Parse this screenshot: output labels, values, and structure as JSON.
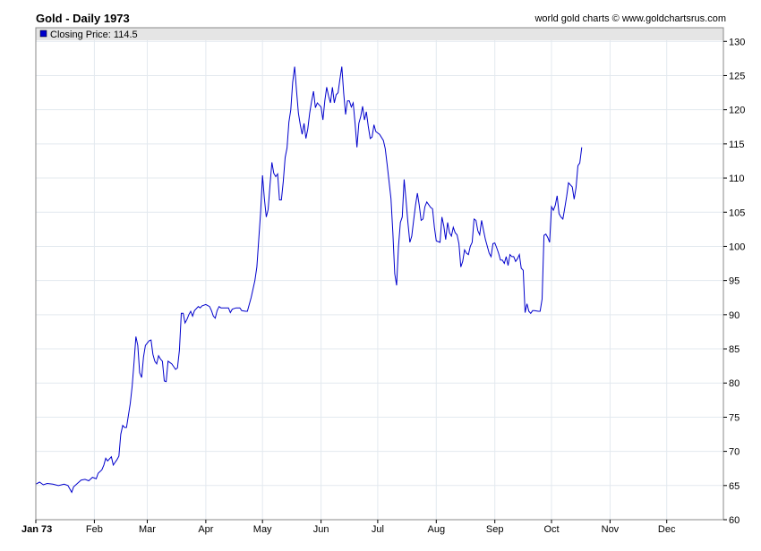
{
  "header": {
    "title": "Gold - Daily 1973",
    "credit": "world gold charts © www.goldchartsrus.com"
  },
  "legend": {
    "label": "Closing Price: 114.5"
  },
  "colors": {
    "series": "#0000cc",
    "grid": "#e3e9ef",
    "legend_bg": "#e5e5e5"
  },
  "chart_data": {
    "type": "line",
    "title": "Gold - Daily 1973",
    "xlabel": "",
    "ylabel": "",
    "ylim": [
      60,
      132
    ],
    "y_ticks": [
      60,
      65,
      70,
      75,
      80,
      85,
      90,
      95,
      100,
      105,
      110,
      115,
      120,
      125,
      130
    ],
    "y_axis_side": "right",
    "grid": true,
    "legend_position": "top-left",
    "x_ticks": [
      {
        "label": "Jan 73",
        "day": 0,
        "bold": true
      },
      {
        "label": "Feb",
        "day": 31
      },
      {
        "label": "Mar",
        "day": 59
      },
      {
        "label": "Apr",
        "day": 90
      },
      {
        "label": "May",
        "day": 120
      },
      {
        "label": "Jun",
        "day": 151
      },
      {
        "label": "Jul",
        "day": 181
      },
      {
        "label": "Aug",
        "day": 212
      },
      {
        "label": "Sep",
        "day": 243
      },
      {
        "label": "Oct",
        "day": 273
      },
      {
        "label": "Nov",
        "day": 304
      },
      {
        "label": "Dec",
        "day": 334
      }
    ],
    "xlim": [
      0,
      364
    ],
    "series": [
      {
        "name": "Closing Price",
        "points": [
          [
            0,
            65.2
          ],
          [
            2,
            65.5
          ],
          [
            4,
            65.1
          ],
          [
            6,
            65.3
          ],
          [
            9,
            65.2
          ],
          [
            12,
            65.0
          ],
          [
            15,
            65.2
          ],
          [
            17,
            65.0
          ],
          [
            18,
            64.5
          ],
          [
            19,
            64.0
          ],
          [
            20,
            64.8
          ],
          [
            22,
            65.3
          ],
          [
            24,
            65.8
          ],
          [
            26,
            65.9
          ],
          [
            28,
            65.7
          ],
          [
            30,
            66.2
          ],
          [
            32,
            66.0
          ],
          [
            33,
            66.8
          ],
          [
            35,
            67.3
          ],
          [
            36,
            68.0
          ],
          [
            37,
            69.0
          ],
          [
            38,
            68.6
          ],
          [
            40,
            69.2
          ],
          [
            41,
            68.0
          ],
          [
            43,
            68.8
          ],
          [
            44,
            69.3
          ],
          [
            45,
            72.5
          ],
          [
            46,
            73.8
          ],
          [
            47,
            73.5
          ],
          [
            48,
            73.5
          ],
          [
            50,
            77.0
          ],
          [
            51,
            79.5
          ],
          [
            52,
            83.0
          ],
          [
            53,
            86.8
          ],
          [
            54,
            85.5
          ],
          [
            55,
            81.5
          ],
          [
            56,
            80.8
          ],
          [
            57,
            83.8
          ],
          [
            58,
            85.5
          ],
          [
            60,
            86.2
          ],
          [
            61,
            86.3
          ],
          [
            62,
            84.2
          ],
          [
            63,
            83.2
          ],
          [
            64,
            82.8
          ],
          [
            65,
            84.0
          ],
          [
            66,
            83.5
          ],
          [
            67,
            83.2
          ],
          [
            68,
            80.3
          ],
          [
            69,
            80.2
          ],
          [
            70,
            83.2
          ],
          [
            71,
            83.0
          ],
          [
            72,
            82.8
          ],
          [
            73,
            82.4
          ],
          [
            74,
            82.0
          ],
          [
            75,
            82.2
          ],
          [
            76,
            84.8
          ],
          [
            77,
            90.2
          ],
          [
            78,
            90.2
          ],
          [
            79,
            88.8
          ],
          [
            80,
            89.3
          ],
          [
            81,
            90.0
          ],
          [
            82,
            90.5
          ],
          [
            83,
            89.8
          ],
          [
            84,
            90.6
          ],
          [
            86,
            91.2
          ],
          [
            87,
            91.0
          ],
          [
            88,
            91.3
          ],
          [
            90,
            91.5
          ],
          [
            92,
            91.2
          ],
          [
            93,
            90.6
          ],
          [
            94,
            89.8
          ],
          [
            95,
            89.5
          ],
          [
            96,
            90.6
          ],
          [
            97,
            91.2
          ],
          [
            98,
            91.0
          ],
          [
            100,
            91.0
          ],
          [
            102,
            91.0
          ],
          [
            103,
            90.3
          ],
          [
            104,
            90.8
          ],
          [
            106,
            91.0
          ],
          [
            108,
            91.0
          ],
          [
            109,
            90.6
          ],
          [
            111,
            90.5
          ],
          [
            112,
            90.5
          ],
          [
            113,
            91.5
          ],
          [
            114,
            92.5
          ],
          [
            116,
            95.0
          ],
          [
            117,
            97.0
          ],
          [
            118,
            101.0
          ],
          [
            119,
            105.0
          ],
          [
            120,
            110.4
          ],
          [
            121,
            107.0
          ],
          [
            122,
            104.3
          ],
          [
            123,
            105.4
          ],
          [
            124,
            109.0
          ],
          [
            125,
            112.3
          ],
          [
            126,
            110.7
          ],
          [
            127,
            110.2
          ],
          [
            128,
            110.6
          ],
          [
            129,
            106.8
          ],
          [
            130,
            106.8
          ],
          [
            131,
            109.5
          ],
          [
            132,
            113.0
          ],
          [
            133,
            114.4
          ],
          [
            134,
            118.2
          ],
          [
            135,
            120.0
          ],
          [
            136,
            124.0
          ],
          [
            137,
            126.3
          ],
          [
            138,
            122.8
          ],
          [
            139,
            119.5
          ],
          [
            140,
            117.8
          ],
          [
            141,
            116.4
          ],
          [
            142,
            118.0
          ],
          [
            143,
            115.8
          ],
          [
            144,
            117.2
          ],
          [
            145,
            119.5
          ],
          [
            146,
            121.2
          ],
          [
            147,
            122.7
          ],
          [
            148,
            120.3
          ],
          [
            149,
            121.0
          ],
          [
            151,
            120.4
          ],
          [
            152,
            118.5
          ],
          [
            153,
            121.3
          ],
          [
            154,
            123.3
          ],
          [
            155,
            122.0
          ],
          [
            156,
            121.0
          ],
          [
            157,
            123.3
          ],
          [
            158,
            121.0
          ],
          [
            159,
            122.2
          ],
          [
            160,
            122.5
          ],
          [
            161,
            124.5
          ],
          [
            162,
            126.3
          ],
          [
            163,
            122.4
          ],
          [
            164,
            119.3
          ],
          [
            165,
            121.3
          ],
          [
            166,
            121.3
          ],
          [
            167,
            120.4
          ],
          [
            168,
            121.0
          ],
          [
            169,
            118.0
          ],
          [
            170,
            114.5
          ],
          [
            171,
            118.0
          ],
          [
            172,
            119.0
          ],
          [
            173,
            120.5
          ],
          [
            174,
            118.5
          ],
          [
            175,
            119.7
          ],
          [
            176,
            117.6
          ],
          [
            177,
            115.8
          ],
          [
            178,
            116.0
          ],
          [
            179,
            117.8
          ],
          [
            180,
            116.8
          ],
          [
            182,
            116.4
          ],
          [
            184,
            115.5
          ],
          [
            185,
            114.3
          ],
          [
            186,
            112.0
          ],
          [
            188,
            107.0
          ],
          [
            189,
            102.0
          ],
          [
            190,
            96.0
          ],
          [
            191,
            94.3
          ],
          [
            192,
            100.0
          ],
          [
            193,
            103.5
          ],
          [
            194,
            104.3
          ],
          [
            195,
            109.8
          ],
          [
            196,
            106.8
          ],
          [
            197,
            103.5
          ],
          [
            198,
            100.6
          ],
          [
            199,
            101.5
          ],
          [
            200,
            103.8
          ],
          [
            201,
            106.0
          ],
          [
            202,
            107.8
          ],
          [
            203,
            106.0
          ],
          [
            204,
            103.8
          ],
          [
            205,
            104.0
          ],
          [
            206,
            105.8
          ],
          [
            207,
            106.5
          ],
          [
            209,
            105.7
          ],
          [
            210,
            105.5
          ],
          [
            211,
            102.8
          ],
          [
            212,
            100.8
          ],
          [
            213,
            100.7
          ],
          [
            214,
            100.6
          ],
          [
            215,
            104.3
          ],
          [
            216,
            103.0
          ],
          [
            217,
            101.0
          ],
          [
            218,
            103.5
          ],
          [
            219,
            102.0
          ],
          [
            220,
            101.5
          ],
          [
            221,
            102.8
          ],
          [
            222,
            102.0
          ],
          [
            223,
            101.7
          ],
          [
            224,
            100.4
          ],
          [
            225,
            97.0
          ],
          [
            226,
            97.8
          ],
          [
            227,
            99.5
          ],
          [
            228,
            99.0
          ],
          [
            229,
            98.8
          ],
          [
            230,
            100.0
          ],
          [
            231,
            100.6
          ],
          [
            232,
            104.0
          ],
          [
            233,
            103.8
          ],
          [
            234,
            102.3
          ],
          [
            235,
            101.7
          ],
          [
            236,
            103.8
          ],
          [
            237,
            102.4
          ],
          [
            238,
            101.0
          ],
          [
            239,
            100.0
          ],
          [
            240,
            99.0
          ],
          [
            241,
            98.5
          ],
          [
            242,
            100.4
          ],
          [
            243,
            100.5
          ],
          [
            244,
            99.8
          ],
          [
            245,
            99.0
          ],
          [
            246,
            98.0
          ],
          [
            247,
            98.0
          ],
          [
            248,
            97.5
          ],
          [
            249,
            98.5
          ],
          [
            250,
            97.2
          ],
          [
            251,
            98.8
          ],
          [
            252,
            98.5
          ],
          [
            253,
            98.5
          ],
          [
            254,
            97.8
          ],
          [
            255,
            98.2
          ],
          [
            256,
            98.8
          ],
          [
            257,
            96.8
          ],
          [
            258,
            96.5
          ],
          [
            259,
            90.3
          ],
          [
            260,
            91.6
          ],
          [
            261,
            90.5
          ],
          [
            262,
            90.2
          ],
          [
            263,
            90.6
          ],
          [
            264,
            90.6
          ],
          [
            266,
            90.5
          ],
          [
            267,
            90.5
          ],
          [
            268,
            92.3
          ],
          [
            269,
            101.6
          ],
          [
            270,
            101.8
          ],
          [
            271,
            101.3
          ],
          [
            272,
            100.6
          ],
          [
            273,
            105.8
          ],
          [
            274,
            105.3
          ],
          [
            275,
            106.0
          ],
          [
            276,
            107.4
          ],
          [
            277,
            104.8
          ],
          [
            278,
            104.3
          ],
          [
            279,
            104.0
          ],
          [
            280,
            105.6
          ],
          [
            281,
            107.3
          ],
          [
            282,
            109.3
          ],
          [
            283,
            109.0
          ],
          [
            284,
            108.7
          ],
          [
            285,
            106.9
          ],
          [
            286,
            108.6
          ],
          [
            287,
            111.8
          ],
          [
            288,
            112.2
          ],
          [
            289,
            114.5
          ]
        ]
      }
    ]
  }
}
